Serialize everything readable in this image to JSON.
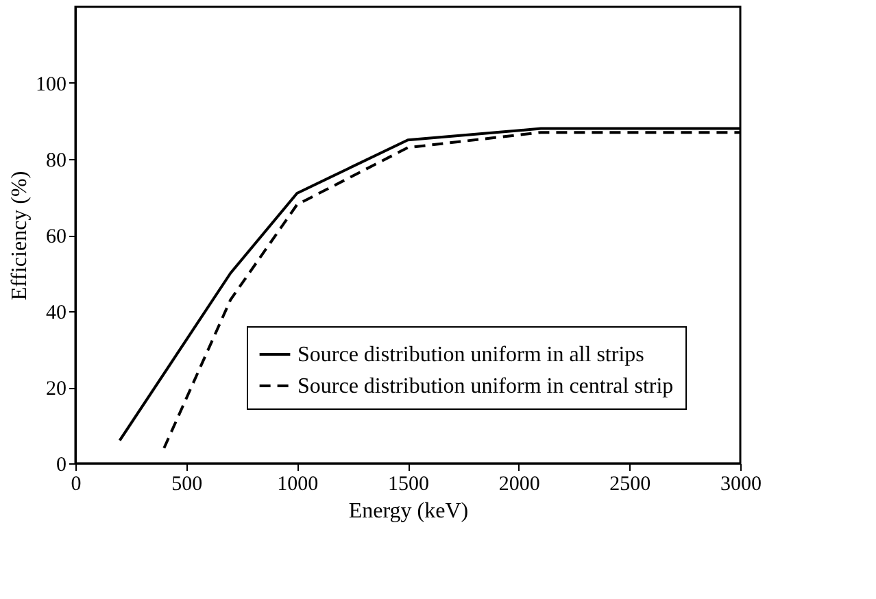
{
  "chart_data": {
    "type": "line",
    "xlabel": "Energy (keV)",
    "ylabel": "Efficiency (%)",
    "xlim": [
      0,
      3000
    ],
    "xticks": [
      0,
      500,
      1000,
      1500,
      2000,
      2500,
      3000
    ],
    "ylim": [
      0,
      120
    ],
    "yticks": [
      0,
      20,
      40,
      60,
      80,
      100
    ],
    "grid": false,
    "legend": "bottom right",
    "marker": "none",
    "series": [
      {
        "name": "Source distribution uniform in all strips",
        "color": "#000000",
        "line_style": "solid",
        "x": [
          200,
          700,
          1000,
          1500,
          2100,
          3000
        ],
        "values": [
          6,
          50,
          71,
          85,
          88,
          88
        ]
      },
      {
        "name": "Source distribution uniform in central strip",
        "color": "#000000",
        "line_style": "dashed",
        "x": [
          400,
          700,
          1000,
          1500,
          2100,
          3000
        ],
        "values": [
          4,
          43,
          68,
          83,
          87,
          87
        ]
      }
    ]
  }
}
